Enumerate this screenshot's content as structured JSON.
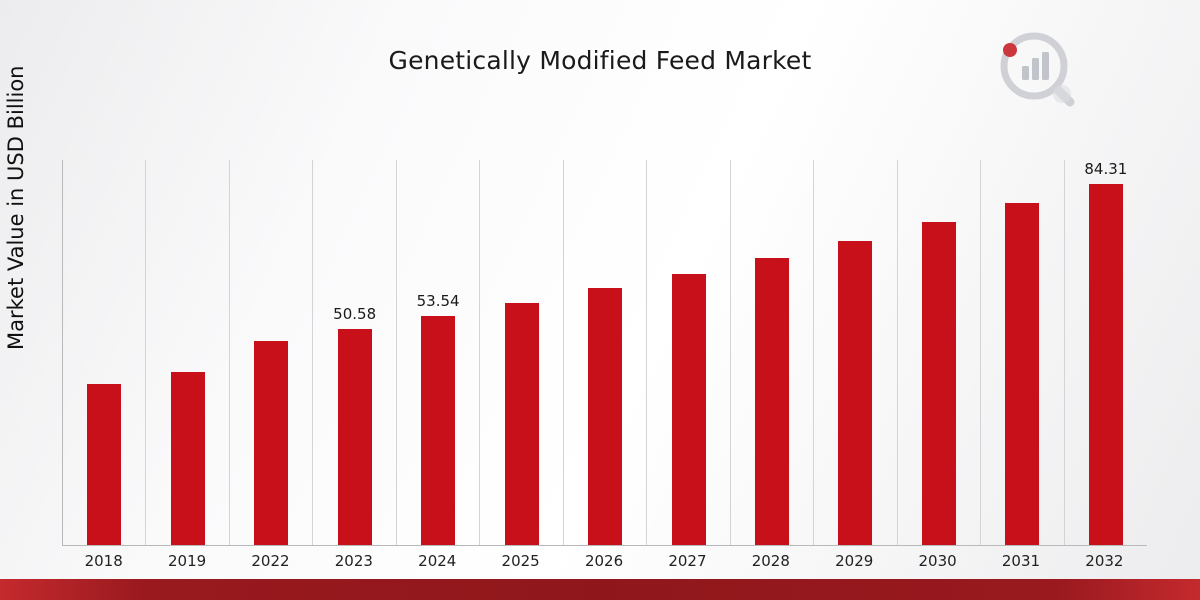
{
  "page": {
    "title": "Genetically Modified Feed Market",
    "y_axis_label": "Market Value in USD Billion"
  },
  "chart_data": {
    "type": "bar",
    "title": "Genetically Modified Feed Market",
    "xlabel": "",
    "ylabel": "Market Value in USD Billion",
    "categories": [
      "2018",
      "2019",
      "2022",
      "2023",
      "2024",
      "2025",
      "2026",
      "2027",
      "2028",
      "2029",
      "2030",
      "2031",
      "2032"
    ],
    "values": [
      37.7,
      40.4,
      47.8,
      50.58,
      53.54,
      56.6,
      60.1,
      63.4,
      67.2,
      71.0,
      75.4,
      79.9,
      84.31
    ],
    "data_labels": [
      "",
      "",
      "",
      "50.58",
      "53.54",
      "",
      "",
      "",
      "",
      "",
      "",
      "",
      "84.31"
    ],
    "ylim": [
      0,
      90
    ],
    "bar_color": "#c8101a",
    "grid": "vertical-column-separators",
    "legend_position": "none",
    "unit": "USD Billion"
  },
  "branding": {
    "logo_name": "market-research-chart-logo"
  }
}
